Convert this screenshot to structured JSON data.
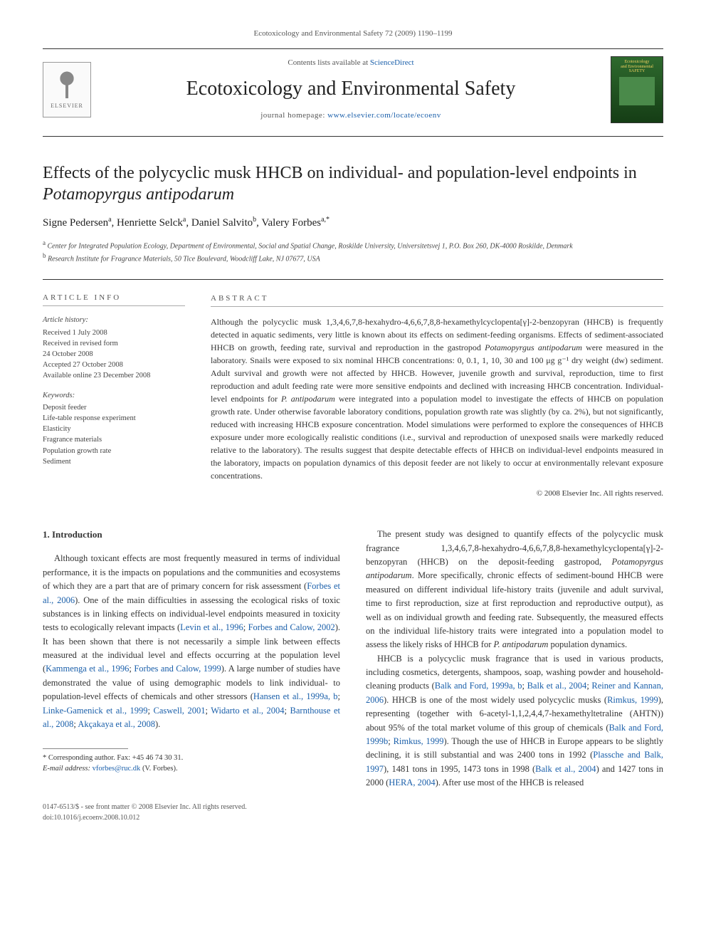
{
  "journal_ref": "Ecotoxicology and Environmental Safety 72 (2009) 1190–1199",
  "header": {
    "contents_prefix": "Contents lists available at ",
    "contents_link": "ScienceDirect",
    "journal_title": "Ecotoxicology and Environmental Safety",
    "homepage_prefix": "journal homepage: ",
    "homepage_link": "www.elsevier.com/locate/ecoenv",
    "publisher_logo_label": "ELSEVIER",
    "cover_text_1": "Ecotoxicology",
    "cover_text_2": "and Environmental",
    "cover_text_3": "SAFETY"
  },
  "article": {
    "title_plain": "Effects of the polycyclic musk HHCB on individual- and population-level endpoints in ",
    "title_species": "Potamopyrgus antipodarum",
    "authors_line": "Signe Pedersen",
    "author_a_sup": "a",
    "author2": ", Henriette Selck",
    "author2_sup": "a",
    "author3": ", Daniel Salvito",
    "author3_sup": "b",
    "author4": ", Valery Forbes",
    "author4_sup": "a,*",
    "aff_a_sup": "a",
    "aff_a": " Center for Integrated Population Ecology, Department of Environmental, Social and Spatial Change, Roskilde University, Universitetsvej 1, P.O. Box 260, DK-4000 Roskilde, Denmark",
    "aff_b_sup": "b",
    "aff_b": " Research Institute for Fragrance Materials, 50 Tice Boulevard, Woodcliff Lake, NJ 07677, USA"
  },
  "info": {
    "head": "ARTICLE INFO",
    "history_label": "Article history:",
    "received": "Received 1 July 2008",
    "revised_1": "Received in revised form",
    "revised_2": "24 October 2008",
    "accepted": "Accepted 27 October 2008",
    "online": "Available online 23 December 2008",
    "keywords_label": "Keywords:",
    "kw1": "Deposit feeder",
    "kw2": "Life-table response experiment",
    "kw3": "Elasticity",
    "kw4": "Fragrance materials",
    "kw5": "Population growth rate",
    "kw6": "Sediment"
  },
  "abstract": {
    "head": "ABSTRACT",
    "p1a": "Although the polycyclic musk 1,3,4,6,7,8-hexahydro-4,6,6,7,8,8-hexamethylcyclopenta[γ]-2-benzopyran (HHCB) is frequently detected in aquatic sediments, very little is known about its effects on sediment-feeding organisms. Effects of sediment-associated HHCB on growth, feeding rate, survival and reproduction in the gastropod ",
    "p1_species": "Potamopyrgus antipodarum",
    "p1b": " were measured in the laboratory. Snails were exposed to six nominal HHCB concentrations: 0, 0.1, 1, 10, 30 and 100 μg g⁻¹ dry weight (dw) sediment. Adult survival and growth were not affected by HHCB. However, juvenile growth and survival, reproduction, time to first reproduction and adult feeding rate were more sensitive endpoints and declined with increasing HHCB concentration. Individual-level endpoints for ",
    "p1_species2": "P. antipodarum",
    "p1c": " were integrated into a population model to investigate the effects of HHCB on population growth rate. Under otherwise favorable laboratory conditions, population growth rate was slightly (by ca. 2%), but not significantly, reduced with increasing HHCB exposure concentration. Model simulations were performed to explore the consequences of HHCB exposure under more ecologically realistic conditions (i.e., survival and reproduction of unexposed snails were markedly reduced relative to the laboratory). The results suggest that despite detectable effects of HHCB on individual-level endpoints measured in the laboratory, impacts on population dynamics of this deposit feeder are not likely to occur at environmentally relevant exposure concentrations.",
    "copyright": "© 2008 Elsevier Inc. All rights reserved."
  },
  "section1_head": "1. Introduction",
  "col_left": {
    "p1a": "Although toxicant effects are most frequently measured in terms of individual performance, it is the impacts on populations and the communities and ecosystems of which they are a part that are of primary concern for risk assessment (",
    "r1": "Forbes et al., 2006",
    "p1b": "). One of the main difficulties in assessing the ecological risks of toxic substances is in linking effects on individual-level endpoints measured in toxicity tests to ecologically relevant impacts (",
    "r2": "Levin et al., 1996",
    "p1c": "; ",
    "r3": "Forbes and Calow, 2002",
    "p1d": "). It has been shown that there is not necessarily a simple link between effects measured at the individual level and effects occurring at the population level (",
    "r4": "Kammenga et al., 1996",
    "p1e": "; ",
    "r5": "Forbes and Calow, 1999",
    "p1f": "). A large number of studies have demonstrated the value of using demographic models to link individual- to population-level effects of chemicals and other stressors (",
    "r6": "Hansen et al., 1999a, b",
    "p1g": "; ",
    "r7": "Linke-Gamenick et al., 1999",
    "p1h": "; ",
    "r8": "Caswell, 2001",
    "p1i": "; ",
    "r9": "Widarto et al., 2004",
    "p1j": "; ",
    "r10": "Barnthouse et al., 2008",
    "p1k": "; ",
    "r11": "Akçakaya et al., 2008",
    "p1l": ").",
    "fn_corr": "* Corresponding author. Fax: +45 46 74 30 31.",
    "fn_email_label": "E-mail address:",
    "fn_email": " vforbes@ruc.dk",
    "fn_name": " (V. Forbes)."
  },
  "col_right": {
    "p1a": "The present study was designed to quantify effects of the polycyclic musk fragrance 1,3,4,6,7,8-hexahydro-4,6,6,7,8,8-hexamethylcyclopenta[γ]-2-benzopyran (HHCB) on the deposit-feeding gastropod, ",
    "sp1": "Potamopyrgus antipodarum",
    "p1b": ". More specifically, chronic effects of sediment-bound HHCB were measured on different individual life-history traits (juvenile and adult survival, time to first reproduction, size at first reproduction and reproductive output), as well as on individual growth and feeding rate. Subsequently, the measured effects on the individual life-history traits were integrated into a population model to assess the likely risks of HHCB for ",
    "sp2": "P. antipodarum",
    "p1c": " population dynamics.",
    "p2a": "HHCB is a polycyclic musk fragrance that is used in various products, including cosmetics, detergents, shampoos, soap, washing powder and household-cleaning products (",
    "r1": "Balk and Ford, 1999a, b",
    "p2b": "; ",
    "r2": "Balk et al., 2004",
    "p2c": "; ",
    "r3": "Reiner and Kannan, 2006",
    "p2d": "). HHCB is one of the most widely used polycyclic musks (",
    "r4": "Rimkus, 1999",
    "p2e": "), representing (together with 6-acetyl-1,1,2,4,4,7-hexamethyltetraline (AHTN)) about 95% of the total market volume of this group of chemicals (",
    "r5": "Balk and Ford, 1999b",
    "p2f": "; ",
    "r6": "Rimkus, 1999",
    "p2g": "). Though the use of HHCB in Europe appears to be slightly declining, it is still substantial and was 2400 tons in 1992 (",
    "r7": "Plassche and Balk, 1997",
    "p2h": "), 1481 tons in 1995, 1473 tons in 1998 (",
    "r8": "Balk et al., 2004",
    "p2i": ") and 1427 tons in 2000 (",
    "r9": "HERA, 2004",
    "p2j": "). After use most of the HHCB is released"
  },
  "footer": {
    "issn": "0147-6513/$ - see front matter © 2008 Elsevier Inc. All rights reserved.",
    "doi": "doi:10.1016/j.ecoenv.2008.10.012"
  },
  "colors": {
    "link": "#1a5faa",
    "text": "#222222",
    "muted": "#555555",
    "rule": "#333333"
  }
}
